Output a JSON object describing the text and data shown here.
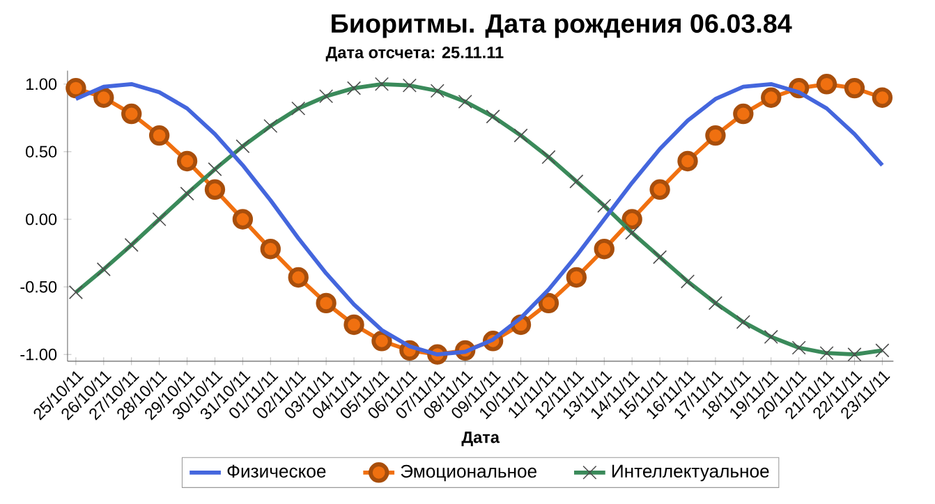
{
  "chart_data": {
    "type": "line",
    "title": "Биоритмы. Дата рождения 06.03.84",
    "subtitle": "Дата отсчета: 25.11.11",
    "xlabel": "Дата",
    "categories": [
      "25/10/11",
      "26/10/11",
      "27/10/11",
      "28/10/11",
      "29/10/11",
      "30/10/11",
      "31/10/11",
      "01/11/11",
      "02/11/11",
      "03/11/11",
      "04/11/11",
      "05/11/11",
      "06/11/11",
      "07/11/11",
      "08/11/11",
      "09/11/11",
      "10/11/11",
      "11/11/11",
      "12/11/11",
      "13/11/11",
      "14/11/11",
      "15/11/11",
      "16/11/11",
      "17/11/11",
      "18/11/11",
      "19/11/11",
      "20/11/11",
      "21/11/11",
      "22/11/11",
      "23/11/11"
    ],
    "series": [
      {
        "name": "Физическое",
        "color": "#4466dd",
        "marker": "none",
        "values": [
          0.89,
          0.98,
          1.0,
          0.94,
          0.82,
          0.63,
          0.4,
          0.14,
          -0.14,
          -0.4,
          -0.63,
          -0.82,
          -0.94,
          -1.0,
          -0.98,
          -0.89,
          -0.73,
          -0.52,
          -0.27,
          0.0,
          0.27,
          0.52,
          0.73,
          0.89,
          0.98,
          1.0,
          0.94,
          0.82,
          0.63,
          0.4
        ]
      },
      {
        "name": "Эмоциональное",
        "color": "#f07010",
        "marker": "circle",
        "values": [
          0.97,
          0.9,
          0.78,
          0.62,
          0.43,
          0.22,
          0.0,
          -0.22,
          -0.43,
          -0.62,
          -0.78,
          -0.9,
          -0.97,
          -1.0,
          -0.97,
          -0.9,
          -0.78,
          -0.62,
          -0.43,
          -0.22,
          0.0,
          0.22,
          0.43,
          0.62,
          0.78,
          0.9,
          0.97,
          1.0,
          0.97,
          0.9
        ]
      },
      {
        "name": "Интеллектуальное",
        "color": "#3a8a5a",
        "marker": "cross",
        "values": [
          -0.54,
          -0.37,
          -0.19,
          0.0,
          0.19,
          0.37,
          0.54,
          0.69,
          0.82,
          0.91,
          0.97,
          1.0,
          0.99,
          0.95,
          0.87,
          0.76,
          0.62,
          0.46,
          0.28,
          0.1,
          -0.1,
          -0.28,
          -0.46,
          -0.62,
          -0.76,
          -0.87,
          -0.95,
          -0.99,
          -1.0,
          -0.97
        ]
      }
    ],
    "ylim": [
      -1.05,
      1.1
    ],
    "yticks": [
      {
        "value": -1,
        "label": "-1.00"
      },
      {
        "value": -0.5,
        "label": "-0.50"
      },
      {
        "value": 0,
        "label": "0.00"
      },
      {
        "value": 0.5,
        "label": "0.50"
      },
      {
        "value": 1,
        "label": "1.00"
      }
    ],
    "legend": "bottom",
    "line_style": "solid",
    "grid": false
  }
}
